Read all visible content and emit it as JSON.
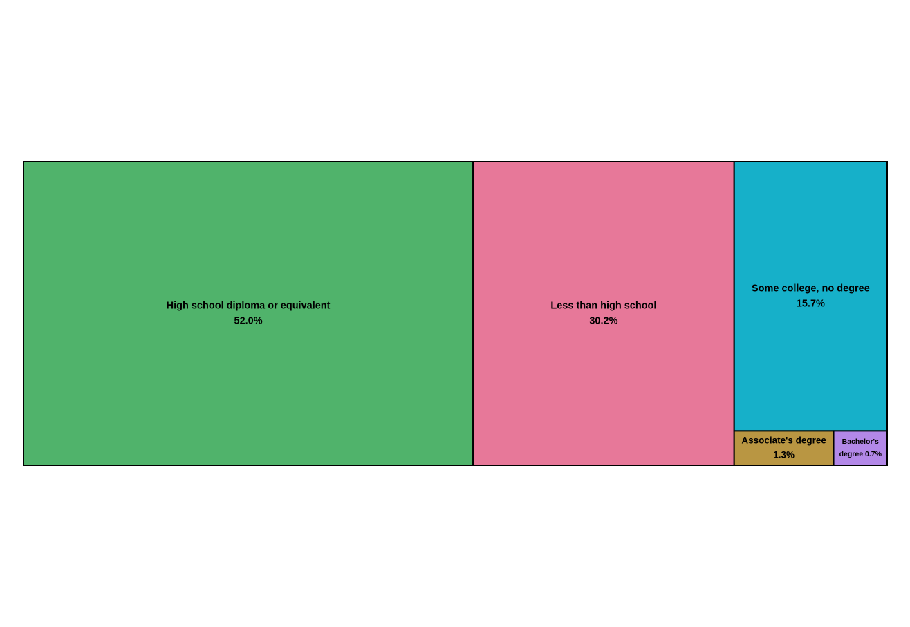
{
  "chart_data": {
    "type": "treemap",
    "title": "",
    "items": [
      {
        "label": "High school diploma or equivalent",
        "value": 52.0,
        "value_label": "52.0%",
        "color": "#50b36b"
      },
      {
        "label": "Less than high school",
        "value": 30.2,
        "value_label": "30.2%",
        "color": "#e77899"
      },
      {
        "label": "Some college, no degree",
        "value": 15.7,
        "value_label": "15.7%",
        "color": "#16b0c9"
      },
      {
        "label": "Associate's degree",
        "value": 1.3,
        "value_label": "1.3%",
        "color": "#b99642"
      },
      {
        "label": "Bachelor's degree",
        "value": 0.7,
        "value_label": "0.7%",
        "color": "#b388e8"
      }
    ],
    "border_color": "#000000"
  }
}
